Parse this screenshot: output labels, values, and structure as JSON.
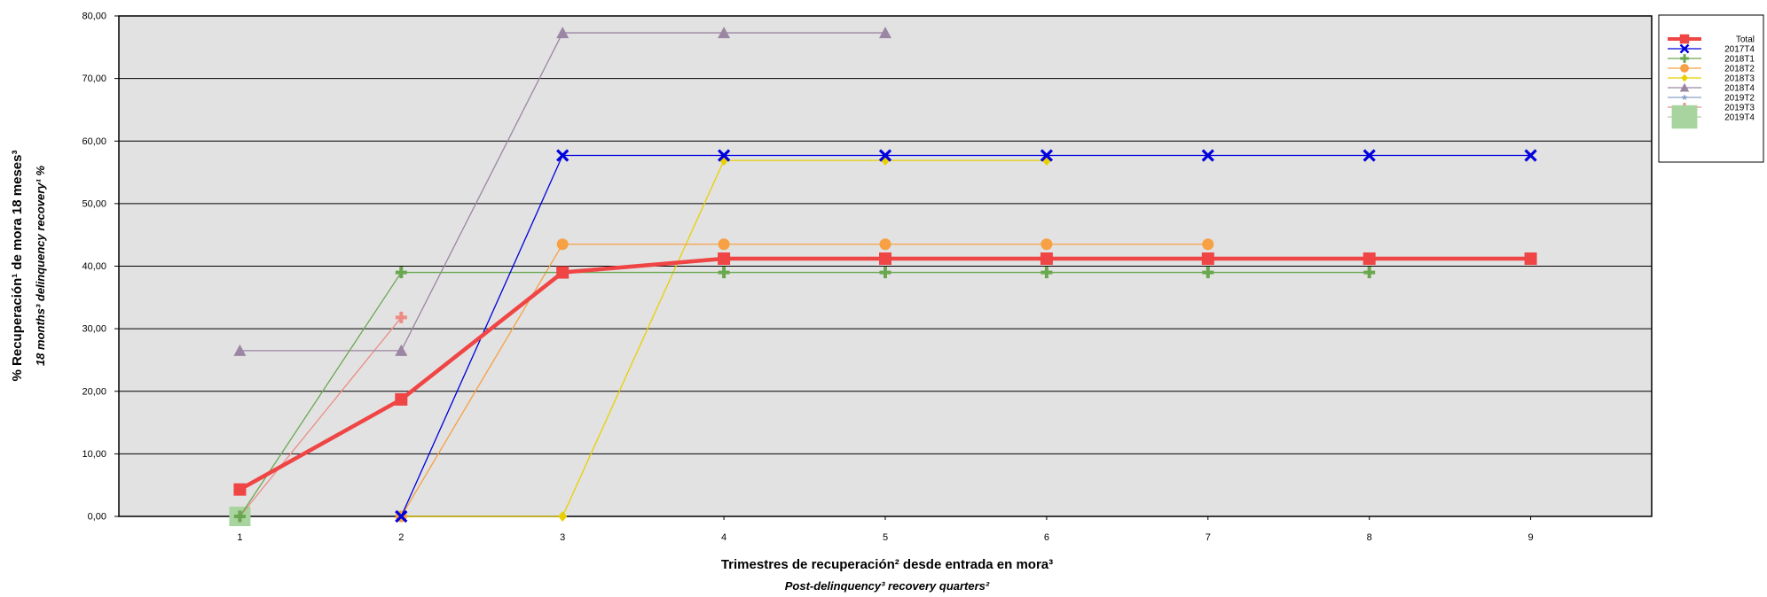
{
  "chart_data": {
    "type": "line",
    "title": "",
    "xlabel": "Trimestres de recuperación² desde entrada en mora³",
    "xlabel_en": "Post-delinquency³ recovery quarters²",
    "ylabel": "% Recuperación¹ de mora 18 meses³",
    "ylabel_en": "18 months³ delinquency recovery¹ %",
    "categories": [
      "1",
      "2",
      "3",
      "4",
      "5",
      "6",
      "7",
      "8",
      "9"
    ],
    "ylim": [
      0,
      80
    ],
    "yticks": [
      "0,00",
      "10,00",
      "20,00",
      "30,00",
      "40,00",
      "50,00",
      "60,00",
      "70,00",
      "80,00"
    ],
    "grid": true,
    "plot_background": "#e2e2e2",
    "legend_position": "right",
    "series": [
      {
        "name": "Total",
        "color": "#f04545",
        "marker": "square",
        "values": [
          4.3,
          18.7,
          39.0,
          41.2,
          41.2,
          41.2,
          41.2,
          41.2,
          41.2
        ]
      },
      {
        "name": "2017T4",
        "color": "#0000dd",
        "marker": "x",
        "values": [
          null,
          0.0,
          57.7,
          57.7,
          57.7,
          57.7,
          57.7,
          57.7,
          57.7
        ]
      },
      {
        "name": "2018T1",
        "color": "#6aa84f",
        "marker": "plus",
        "values": [
          0.0,
          39.0,
          39.0,
          39.0,
          39.0,
          39.0,
          39.0,
          39.0,
          null
        ]
      },
      {
        "name": "2018T2",
        "color": "#f7a044",
        "marker": "circle",
        "values": [
          null,
          0.0,
          43.5,
          43.5,
          43.5,
          43.5,
          43.5,
          null,
          null
        ]
      },
      {
        "name": "2018T3",
        "color": "#e8d000",
        "marker": "diamond",
        "values": [
          null,
          0.0,
          0.0,
          56.9,
          56.9,
          56.9,
          null,
          null,
          null
        ]
      },
      {
        "name": "2018T4",
        "color": "#9b86a3",
        "marker": "triangle",
        "values": [
          26.5,
          26.5,
          77.3,
          77.3,
          77.3,
          null,
          null,
          null,
          null
        ]
      },
      {
        "name": "2019T2",
        "color": "#8ea0c8",
        "marker": "star",
        "values": [
          null,
          0.0,
          null,
          null,
          null,
          null,
          null,
          null,
          null
        ]
      },
      {
        "name": "2019T3",
        "color": "#ec8c84",
        "marker": "plus",
        "values": [
          0.0,
          31.8,
          null,
          null,
          null,
          null,
          null,
          null,
          null
        ]
      },
      {
        "name": "2019T4",
        "color": "#a8d4a0",
        "marker": "bigsquare",
        "values": [
          0.0,
          null,
          null,
          null,
          null,
          null,
          null,
          null,
          null
        ]
      }
    ]
  }
}
